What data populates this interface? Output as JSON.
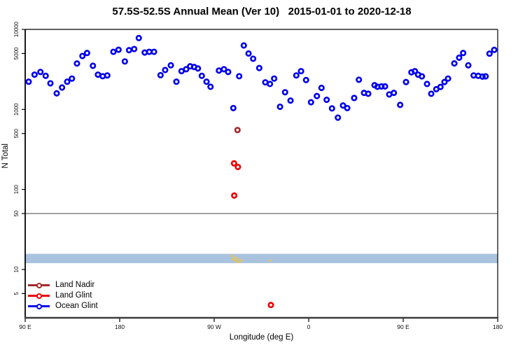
{
  "title": "57.5S-52.5S Annual Mean (Ver 10)   2015-01-01 to 2020-12-18",
  "legend": {
    "items": [
      {
        "label": "Land Nadir",
        "color": "#A52A2A"
      },
      {
        "label": "Land Glint",
        "color": "#EE0000"
      },
      {
        "label": "Ocean Glint",
        "color": "#0000EE"
      }
    ]
  },
  "chart_data": {
    "type": "scatter",
    "title": "57.5S-52.5S Annual Mean (Ver 10)   2015-01-01 to 2020-12-18",
    "xlabel": "Longitude (deg E)",
    "ylabel": "N Total",
    "x_axis": {
      "lim": [
        90,
        540
      ],
      "ticks": [
        {
          "lon": 90,
          "label": "90 E"
        },
        {
          "lon": 180,
          "label": "180"
        },
        {
          "lon": 270,
          "label": "90 W"
        },
        {
          "lon": 360,
          "label": "0"
        },
        {
          "lon": 450,
          "label": "90 E"
        },
        {
          "lon": 540,
          "label": "180"
        }
      ]
    },
    "y_axis": {
      "scale": "log",
      "lim": [
        2.5,
        10000
      ],
      "ticks": [
        10000,
        5000,
        1000,
        500,
        100,
        50,
        10,
        5
      ]
    },
    "reference_line": {
      "y": 50,
      "color": "#8c8c8c"
    },
    "band": {
      "n_low": 12,
      "n_high": 15.7,
      "color": "#A9C3DF"
    },
    "series": [
      {
        "name": "Ocean Glint",
        "color": "#0000EE",
        "points": [
          [
            93.3,
            2220
          ],
          [
            98.9,
            2720
          ],
          [
            104.5,
            2940
          ],
          [
            109.5,
            2630
          ],
          [
            114,
            2120
          ],
          [
            120,
            1590
          ],
          [
            125.1,
            1880
          ],
          [
            130,
            2220
          ],
          [
            134.5,
            2430
          ],
          [
            139.3,
            3750
          ],
          [
            144.5,
            4650
          ],
          [
            148.9,
            5070
          ],
          [
            154.5,
            3510
          ],
          [
            159.3,
            2720
          ],
          [
            163.8,
            2600
          ],
          [
            168.2,
            2660
          ],
          [
            174,
            5250
          ],
          [
            178.9,
            5570
          ],
          [
            184.9,
            3980
          ],
          [
            188.9,
            5500
          ],
          [
            193.8,
            5690
          ],
          [
            198.2,
            7800
          ],
          [
            203.8,
            5140
          ],
          [
            208.2,
            5250
          ],
          [
            212.7,
            5250
          ],
          [
            218.9,
            2680
          ],
          [
            223.3,
            3110
          ],
          [
            228.7,
            3560
          ],
          [
            234,
            2220
          ],
          [
            238.9,
            3010
          ],
          [
            243.3,
            3180
          ],
          [
            247.1,
            3460
          ],
          [
            250.9,
            3390
          ],
          [
            254.5,
            3250
          ],
          [
            258.2,
            2630
          ],
          [
            262.7,
            2220
          ],
          [
            266.5,
            1920
          ],
          [
            274.5,
            3060
          ],
          [
            279.3,
            3180
          ],
          [
            283.3,
            2940
          ],
          [
            288.2,
            1040
          ],
          [
            293.8,
            2600
          ],
          [
            298.2,
            6300
          ],
          [
            302.7,
            5000
          ],
          [
            307.1,
            4300
          ],
          [
            312.9,
            3290
          ],
          [
            318.7,
            2180
          ],
          [
            323.1,
            2080
          ],
          [
            327.1,
            2430
          ],
          [
            332.7,
            1080
          ],
          [
            337.5,
            1640
          ],
          [
            342.7,
            1290
          ],
          [
            348.2,
            2660
          ],
          [
            352.7,
            3010
          ],
          [
            357.5,
            2330
          ],
          [
            362.2,
            1230
          ],
          [
            367.8,
            1470
          ],
          [
            372.2,
            1860
          ],
          [
            377.1,
            1320
          ],
          [
            382.2,
            1030
          ],
          [
            387.8,
            790
          ],
          [
            392.7,
            1120
          ],
          [
            396.7,
            1040
          ],
          [
            403.3,
            1390
          ],
          [
            407.8,
            2350
          ],
          [
            412.7,
            1610
          ],
          [
            416.7,
            1570
          ],
          [
            422.7,
            2010
          ],
          [
            425.5,
            1920
          ],
          [
            429.3,
            1940
          ],
          [
            432.7,
            1940
          ],
          [
            436.7,
            1540
          ],
          [
            441.1,
            1610
          ],
          [
            447.1,
            1140
          ],
          [
            452.7,
            2200
          ],
          [
            457.8,
            2910
          ],
          [
            461.1,
            3010
          ],
          [
            464.2,
            2720
          ],
          [
            467.8,
            2590
          ],
          [
            472.7,
            2080
          ],
          [
            476.7,
            1570
          ],
          [
            481.5,
            1790
          ],
          [
            485.5,
            1910
          ],
          [
            489.3,
            2200
          ],
          [
            492.7,
            2430
          ],
          [
            498.7,
            3760
          ],
          [
            503.3,
            4430
          ],
          [
            507.1,
            5070
          ],
          [
            512,
            3560
          ],
          [
            517.1,
            2660
          ],
          [
            521.5,
            2630
          ],
          [
            525.5,
            2570
          ],
          [
            528.5,
            2590
          ],
          [
            532.2,
            4980
          ],
          [
            536.7,
            5550
          ]
        ]
      },
      {
        "name": "Land Nadir",
        "color": "#A52A2A",
        "points": [
          [
            292.2,
            553
          ]
        ]
      },
      {
        "name": "Land Glint",
        "color": "#EE0000",
        "points": [
          [
            288.9,
            212
          ],
          [
            292.6,
            191
          ],
          [
            289.1,
            84
          ],
          [
            324,
            3.6
          ]
        ]
      }
    ],
    "extra_marks": {
      "name": "yellow-marks",
      "color": "#E8C44C",
      "points": [
        [
          286.5,
          14.8
        ],
        [
          288,
          13.6
        ],
        [
          289.2,
          13.1
        ],
        [
          290.2,
          14.1
        ],
        [
          291.2,
          12.6
        ],
        [
          292.6,
          13.4
        ],
        [
          294,
          12.3
        ],
        [
          296,
          13.0
        ],
        [
          323.5,
          12.9
        ]
      ]
    }
  }
}
